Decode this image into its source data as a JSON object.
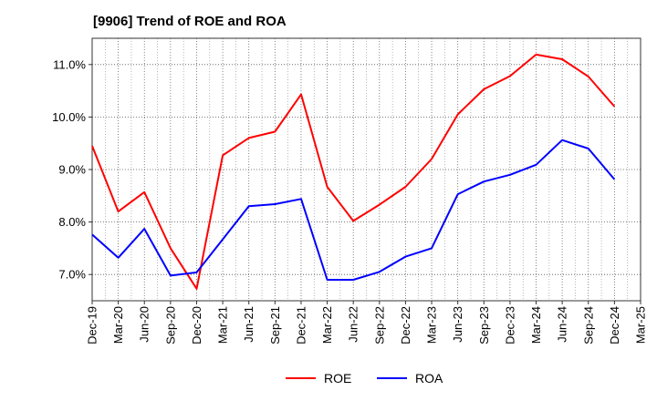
{
  "chart_data": {
    "type": "line",
    "title": "[9906]  Trend of ROE and ROA",
    "xlabel": "",
    "ylabel": "",
    "categories": [
      "Dec-19",
      "Mar-20",
      "Jun-20",
      "Sep-20",
      "Dec-20",
      "Mar-21",
      "Jun-21",
      "Sep-21",
      "Dec-21",
      "Mar-22",
      "Jun-22",
      "Sep-22",
      "Dec-22",
      "Mar-23",
      "Jun-23",
      "Sep-23",
      "Dec-23",
      "Mar-24",
      "Jun-24",
      "Sep-24",
      "Dec-24",
      "Mar-25"
    ],
    "ylim": [
      6.5,
      11.5
    ],
    "yticks": [
      7.0,
      8.0,
      9.0,
      10.0,
      11.0
    ],
    "ytick_labels": [
      "7.0%",
      "8.0%",
      "9.0%",
      "10.0%",
      "11.0%"
    ],
    "grid": true,
    "legend_position": "bottom-center",
    "series": [
      {
        "name": "ROE",
        "color": "#ff0000",
        "values": [
          9.45,
          8.2,
          8.57,
          7.5,
          6.73,
          9.27,
          9.6,
          9.72,
          10.43,
          8.67,
          8.02,
          8.33,
          8.67,
          9.2,
          10.05,
          10.53,
          10.78,
          11.19,
          11.1,
          10.77,
          10.2,
          null
        ]
      },
      {
        "name": "ROA",
        "color": "#0000ff",
        "values": [
          7.76,
          7.32,
          7.87,
          6.98,
          7.04,
          7.67,
          8.3,
          8.34,
          8.44,
          6.9,
          6.9,
          7.05,
          7.34,
          7.5,
          8.53,
          8.77,
          8.9,
          9.09,
          9.56,
          9.4,
          8.81,
          null
        ]
      }
    ]
  }
}
